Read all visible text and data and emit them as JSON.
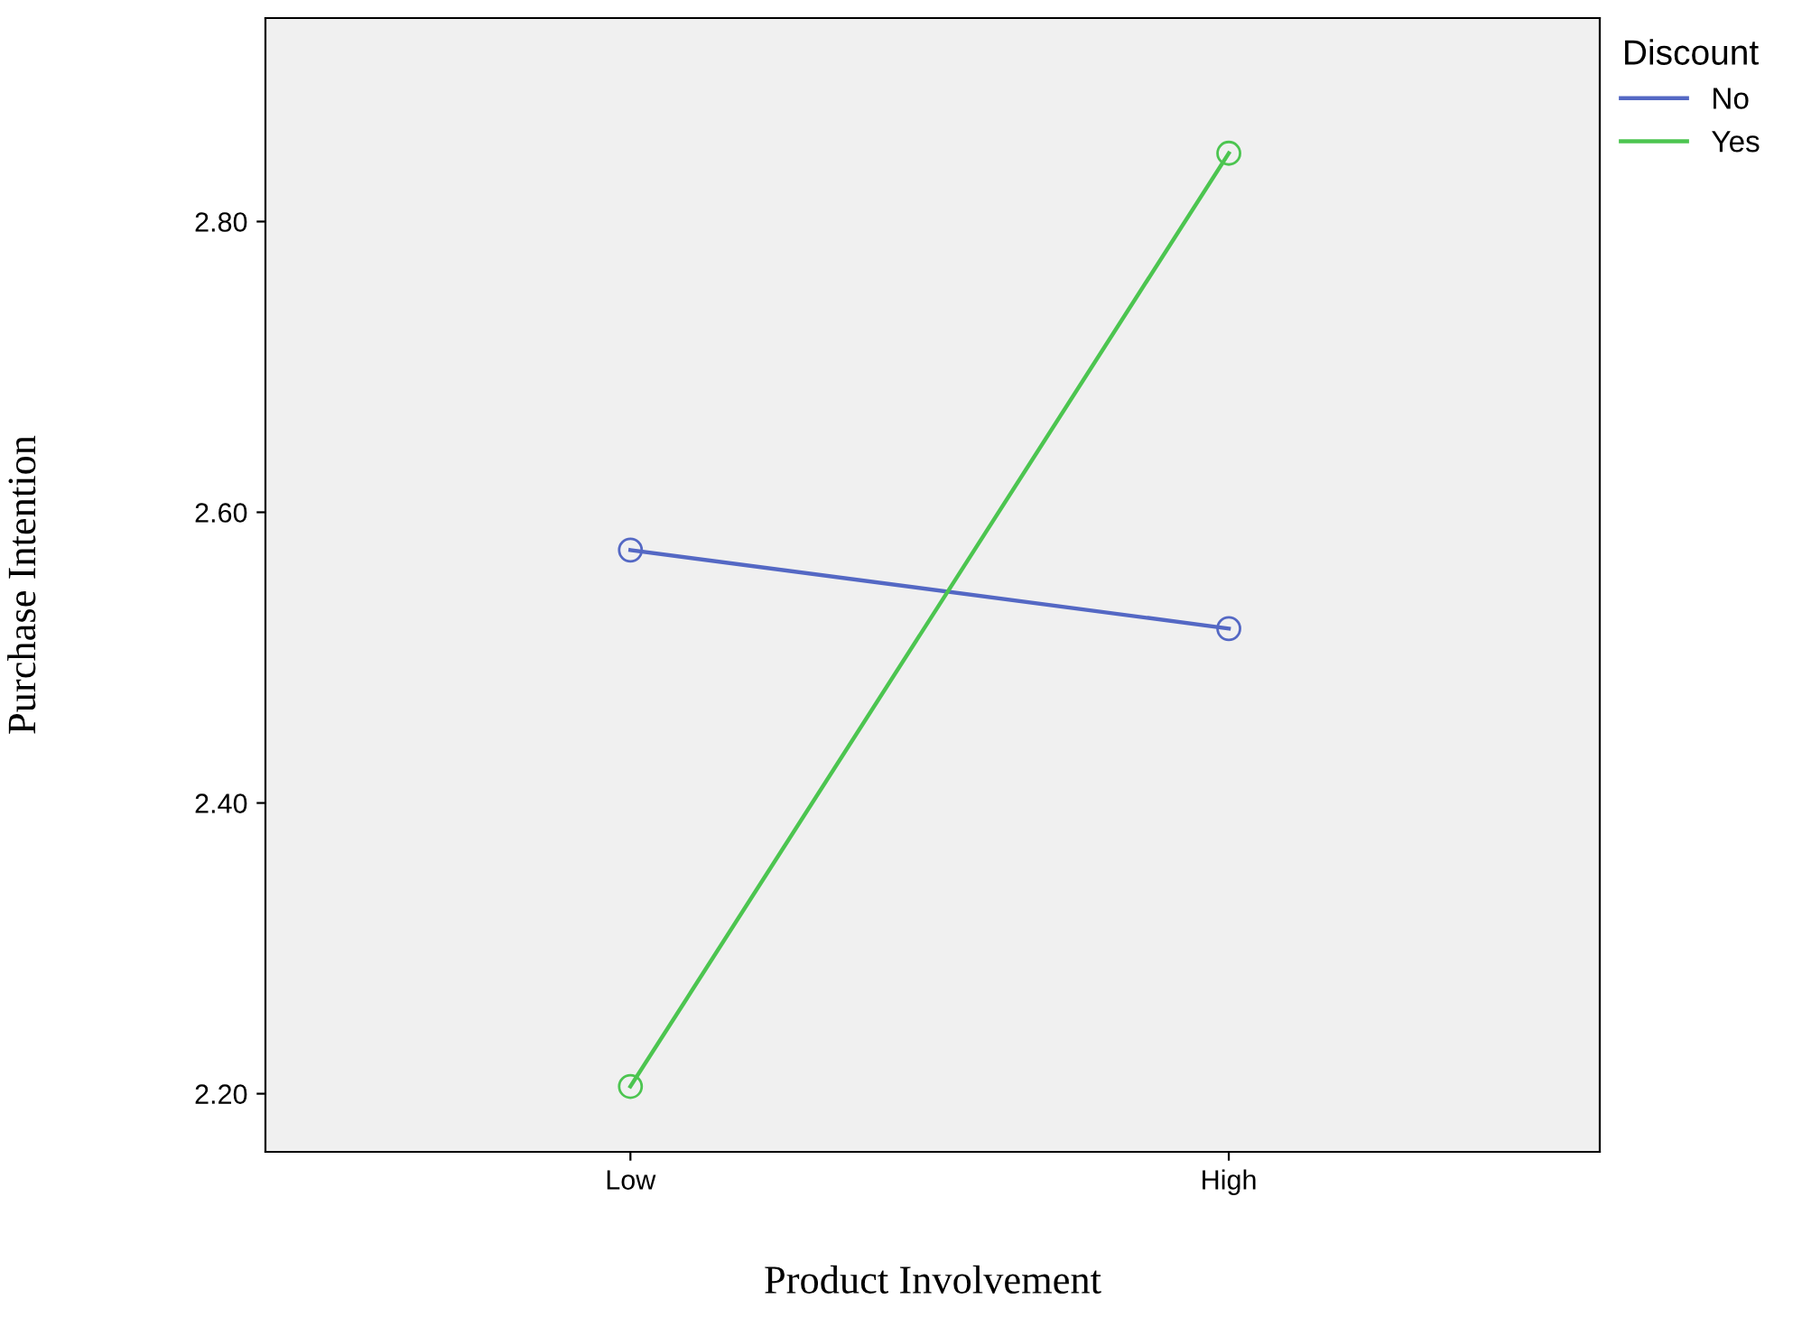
{
  "chart_data": {
    "type": "line",
    "xlabel": "Product Involvement",
    "ylabel": "Purchase Intention",
    "legend_title": "Discount",
    "categories": [
      "Low",
      "High"
    ],
    "series": [
      {
        "name": "No",
        "color": "#5468c4",
        "values": [
          2.574,
          2.52
        ]
      },
      {
        "name": "Yes",
        "color": "#4cc550",
        "values": [
          2.205,
          2.847
        ]
      }
    ],
    "ylim": [
      2.16,
      2.94
    ],
    "yticks": [
      {
        "value": 2.2,
        "label": "2.20"
      },
      {
        "value": 2.4,
        "label": "2.40"
      },
      {
        "value": 2.6,
        "label": "2.60"
      },
      {
        "value": 2.8,
        "label": "2.80"
      }
    ],
    "grid": false,
    "legend": "top right",
    "marker": "circle",
    "line_style": "solid"
  }
}
